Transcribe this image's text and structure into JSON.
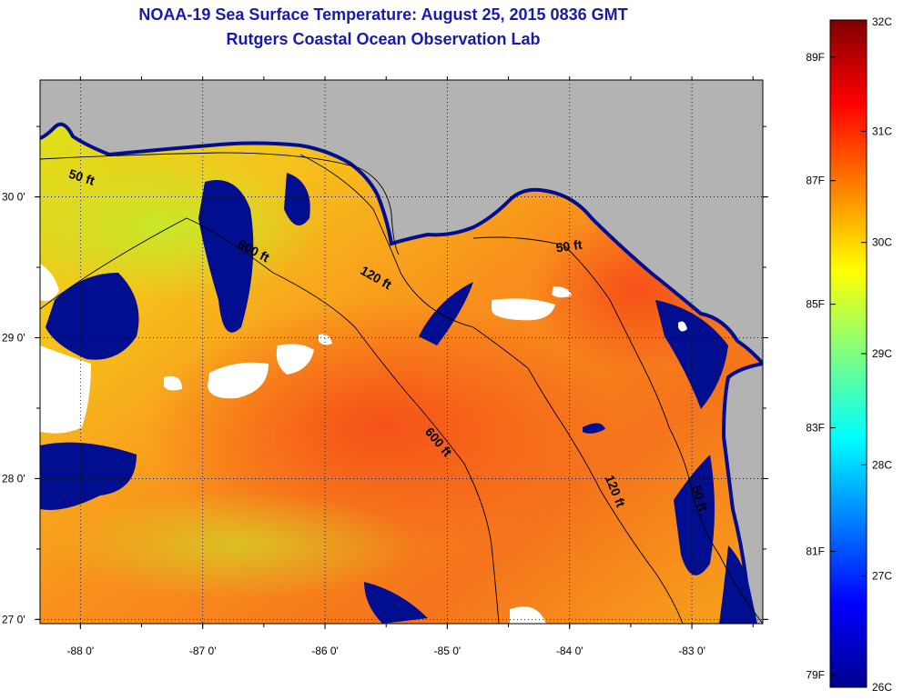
{
  "header": {
    "title": "NOAA-19 Sea Surface Temperature:  August 25, 2015 0836 GMT",
    "subtitle": "Rutgers Coastal Ocean Observation Lab"
  },
  "map": {
    "lon_range": [
      -88.33,
      -82.42
    ],
    "lat_range": [
      26.97,
      30.83
    ],
    "lon_ticks": [
      {
        "value": -88,
        "label": "-88 0'"
      },
      {
        "value": -87,
        "label": "-87 0'"
      },
      {
        "value": -86,
        "label": "-86 0'"
      },
      {
        "value": -85,
        "label": "-85 0'"
      },
      {
        "value": -84,
        "label": "-84 0'"
      },
      {
        "value": -83,
        "label": "-83 0'"
      }
    ],
    "lat_ticks": [
      {
        "value": 27,
        "label": "27 0'"
      },
      {
        "value": 28,
        "label": "28 0'"
      },
      {
        "value": 29,
        "label": "29 0'"
      },
      {
        "value": 30,
        "label": "30 0'"
      }
    ],
    "depth_labels": [
      {
        "text": "50 ft",
        "lon": -88.0,
        "lat": 30.11,
        "angle": 18
      },
      {
        "text": "600 ft",
        "lon": -86.6,
        "lat": 29.59,
        "angle": 28
      },
      {
        "text": "120 ft",
        "lon": -85.6,
        "lat": 29.4,
        "angle": 30
      },
      {
        "text": "50 ft",
        "lon": -84.0,
        "lat": 29.62,
        "angle": -8
      },
      {
        "text": "600 ft",
        "lon": -85.1,
        "lat": 28.24,
        "angle": 50
      },
      {
        "text": "120 ft",
        "lon": -83.66,
        "lat": 27.9,
        "angle": 68
      },
      {
        "text": "50 ft",
        "lon": -82.97,
        "lat": 27.85,
        "angle": 72
      }
    ],
    "colors": {
      "land": "#b3b3b3",
      "cloud": "#ffffff",
      "frame": "#000000"
    }
  },
  "colorbar": {
    "celsius_min": 26,
    "celsius_max": 32,
    "celsius_labels": [
      "32C",
      "31C",
      "30C",
      "29C",
      "28C",
      "27C",
      "26C"
    ],
    "fahrenheit_labels": [
      {
        "label": "89F",
        "value": 89
      },
      {
        "label": "87F",
        "value": 87
      },
      {
        "label": "85F",
        "value": 85
      },
      {
        "label": "83F",
        "value": 83
      },
      {
        "label": "81F",
        "value": 81
      },
      {
        "label": "79F",
        "value": 79
      }
    ],
    "colormap": [
      "#00008f",
      "#0000ff",
      "#00ffff",
      "#ffff00",
      "#ff0000",
      "#800000"
    ]
  }
}
